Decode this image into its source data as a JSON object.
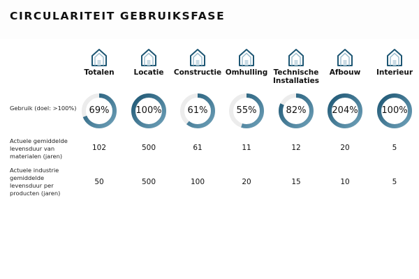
{
  "page": {
    "title": "CIRCULARITEIT GEBRUIKSFASE"
  },
  "colors": {
    "ring_start": "#6ea0b8",
    "ring_end": "#1d5673",
    "ring_track": "#ececec"
  },
  "row_labels": {
    "gebruik": "Gebruik (doel: >100%)",
    "actueel": "Actuele gemiddelde levensduur van materialen (jaren)",
    "industrie": "Actuele industrie gemiddelde levensduur per producten (jaren)"
  },
  "columns": [
    {
      "label": "Totalen",
      "icon": "house-totals-icon",
      "usage_label": "69%",
      "usage_fraction": 0.69,
      "actueel": "102",
      "industrie": "50"
    },
    {
      "label": "Locatie",
      "icon": "house-location-icon",
      "usage_label": "100%",
      "usage_fraction": 1.0,
      "actueel": "500",
      "industrie": "500"
    },
    {
      "label": "Constructie",
      "icon": "house-structure-icon",
      "usage_label": "61%",
      "usage_fraction": 0.61,
      "actueel": "61",
      "industrie": "100"
    },
    {
      "label": "Omhulling",
      "icon": "house-envelope-icon",
      "usage_label": "55%",
      "usage_fraction": 0.55,
      "actueel": "11",
      "industrie": "20"
    },
    {
      "label": "Technische Installaties",
      "icon": "house-installations-icon",
      "usage_label": "82%",
      "usage_fraction": 0.82,
      "actueel": "12",
      "industrie": "15"
    },
    {
      "label": "Afbouw",
      "icon": "house-finishing-icon",
      "usage_label": "204%",
      "usage_fraction": 1.0,
      "actueel": "20",
      "industrie": "10"
    },
    {
      "label": "Interieur",
      "icon": "house-interior-icon",
      "usage_label": "100%",
      "usage_fraction": 1.0,
      "actueel": "5",
      "industrie": "5"
    }
  ]
}
